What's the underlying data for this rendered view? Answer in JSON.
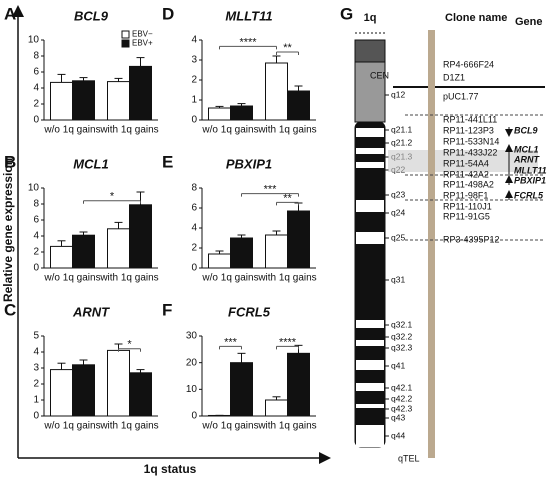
{
  "figure": {
    "y_label": "Relative gene expression",
    "x_label": "1q status",
    "panel": "G"
  },
  "chart_data": [
    {
      "type": "bar",
      "panel": "A",
      "title": "BCL9",
      "categories": [
        "w/o 1q gains",
        "with 1q gains"
      ],
      "ylim": [
        0,
        10
      ],
      "yticks": [
        0,
        2,
        4,
        6,
        8,
        10
      ],
      "legend": "upper right",
      "series": [
        {
          "name": "EBV−",
          "color": "#ffffff",
          "values": [
            4.7,
            4.8
          ],
          "errors": [
            1.0,
            0.4
          ]
        },
        {
          "name": "EBV+",
          "color": "#111111",
          "values": [
            4.9,
            6.7
          ],
          "errors": [
            0.4,
            1.1
          ]
        }
      ],
      "annotations": []
    },
    {
      "type": "bar",
      "panel": "B",
      "title": "MCL1",
      "categories": [
        "w/o 1q gains",
        "with 1q gains"
      ],
      "ylim": [
        0,
        10
      ],
      "yticks": [
        0,
        2,
        4,
        6,
        8,
        10
      ],
      "series": [
        {
          "color": "#ffffff",
          "values": [
            2.7,
            4.9
          ],
          "errors": [
            0.7,
            0.8
          ]
        },
        {
          "color": "#111111",
          "values": [
            4.1,
            7.9
          ],
          "errors": [
            0.4,
            1.6
          ]
        }
      ],
      "annotations": [
        "*"
      ]
    },
    {
      "type": "bar",
      "panel": "C",
      "title": "ARNT",
      "categories": [
        "w/o 1q gains",
        "with 1q gains"
      ],
      "ylim": [
        0,
        5
      ],
      "yticks": [
        0,
        1,
        2,
        3,
        4,
        5
      ],
      "series": [
        {
          "color": "#ffffff",
          "values": [
            2.9,
            4.1
          ],
          "errors": [
            0.4,
            0.4
          ]
        },
        {
          "color": "#111111",
          "values": [
            3.2,
            2.7
          ],
          "errors": [
            0.3,
            0.2
          ]
        }
      ],
      "annotations": [
        "*"
      ]
    },
    {
      "type": "bar",
      "panel": "D",
      "title": "MLLT11",
      "categories": [
        "w/o 1q gains",
        "with 1q gains"
      ],
      "ylim": [
        0,
        4
      ],
      "yticks": [
        0,
        1,
        2,
        3,
        4
      ],
      "series": [
        {
          "color": "#ffffff",
          "values": [
            0.6,
            2.85
          ],
          "errors": [
            0.08,
            0.35
          ]
        },
        {
          "color": "#111111",
          "values": [
            0.7,
            1.45
          ],
          "errors": [
            0.12,
            0.25
          ]
        }
      ],
      "annotations": [
        "****",
        "**"
      ]
    },
    {
      "type": "bar",
      "panel": "E",
      "title": "PBXIP1",
      "categories": [
        "w/o 1q gains",
        "with 1q gains"
      ],
      "ylim": [
        0,
        8
      ],
      "yticks": [
        0,
        2,
        4,
        6,
        8
      ],
      "series": [
        {
          "color": "#ffffff",
          "values": [
            1.4,
            3.3
          ],
          "errors": [
            0.3,
            0.4
          ]
        },
        {
          "color": "#111111",
          "values": [
            3.0,
            5.7
          ],
          "errors": [
            0.3,
            0.8
          ]
        }
      ],
      "annotations": [
        "***",
        "**"
      ]
    },
    {
      "type": "bar",
      "panel": "F",
      "title": "FCRL5",
      "categories": [
        "w/o 1q gains",
        "with 1q gains"
      ],
      "ylim": [
        0,
        30
      ],
      "yticks": [
        0,
        10,
        20,
        30
      ],
      "series": [
        {
          "color": "#ffffff",
          "values": [
            0.2,
            6
          ],
          "errors": [
            0.05,
            1.2
          ]
        },
        {
          "color": "#111111",
          "values": [
            20,
            23.5
          ],
          "errors": [
            3.5,
            3
          ]
        }
      ],
      "annotations": [
        "***",
        "****"
      ]
    }
  ],
  "ideogram": {
    "title": "1q",
    "cen": "CEN",
    "tel": "qTEL",
    "bands": [
      "q12",
      "q21.1",
      "q21.2",
      "q21.3",
      "q22",
      "q23",
      "q24",
      "q25",
      "q31",
      "q32.1",
      "q32.2",
      "q32.3",
      "q41",
      "q42.1",
      "q42.2",
      "q42.3",
      "q43",
      "q44"
    ]
  },
  "clones": {
    "header": "Clone name",
    "gene_header": "Gene",
    "names": [
      "RP4-666F24",
      "D1Z1",
      "pUC1.77",
      "RP11-441L11",
      "RP11-123P3",
      "RP11-533N14",
      "RP11-433J22",
      "RP11-54A4",
      "RP11-42A2",
      "RP11-498A2",
      "RP11-98F1",
      "RP11-110J1",
      "RP11-91G5",
      "RP3-4395P12"
    ],
    "genes": [
      "BCL9",
      "MCL1",
      "ARNT",
      "MLLT11",
      "PBXIP1",
      "FCRL5"
    ]
  }
}
